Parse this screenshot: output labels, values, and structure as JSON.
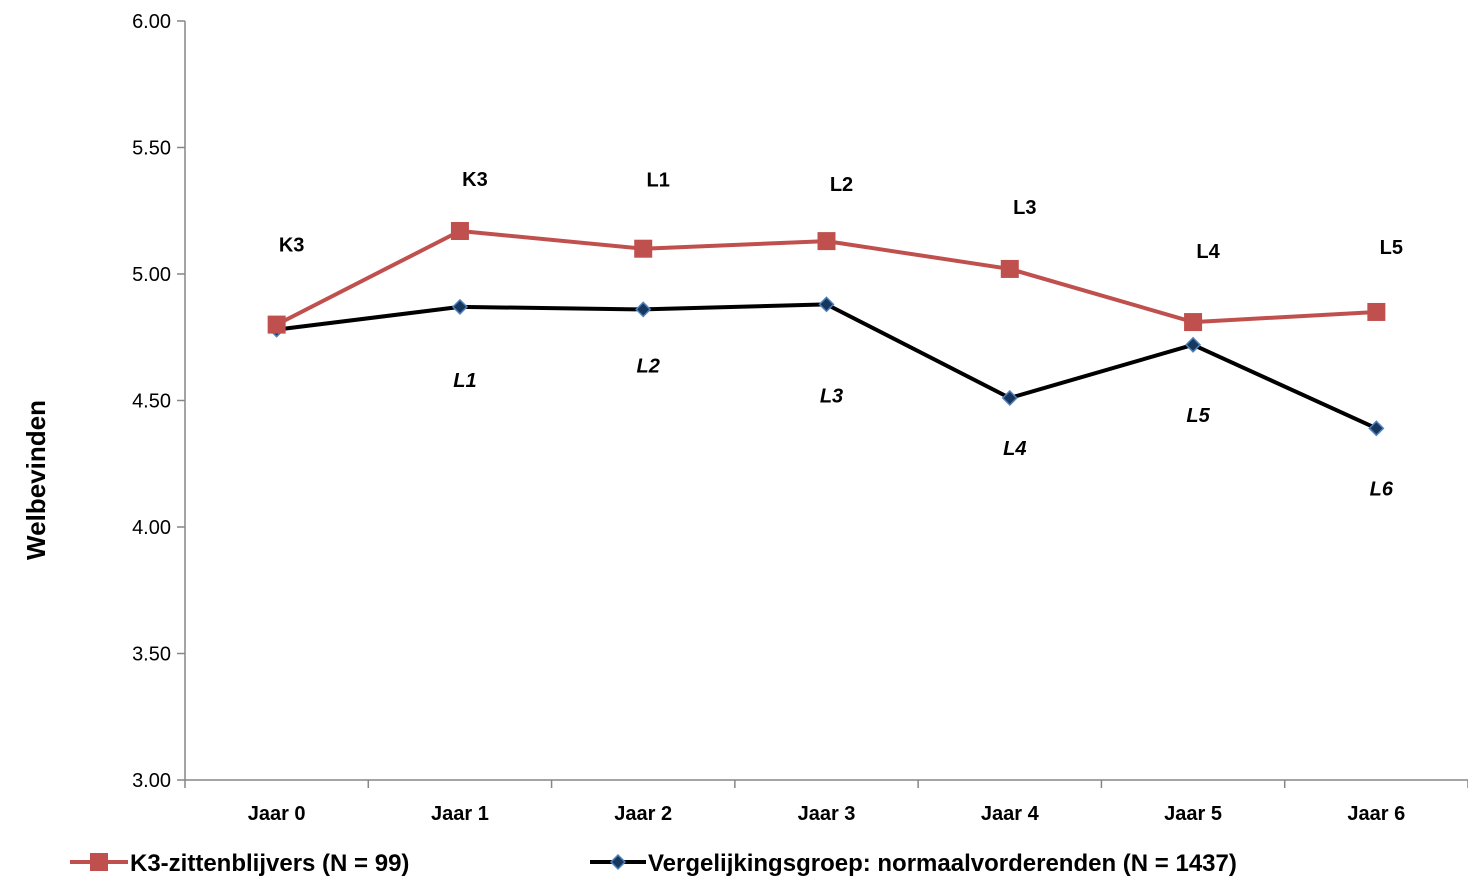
{
  "chart_data": {
    "type": "line",
    "title": "",
    "xlabel": "",
    "ylabel": "Welbevinden",
    "ylim": [
      3.0,
      6.0
    ],
    "yticks": [
      "3.00",
      "3.50",
      "4.00",
      "4.50",
      "5.00",
      "5.50",
      "6.00"
    ],
    "categories": [
      "Jaar 0",
      "Jaar 1",
      "Jaar 2",
      "Jaar 3",
      "Jaar 4",
      "Jaar 5",
      "Jaar 6"
    ],
    "grid": false,
    "legend_position": "bottom",
    "series": [
      {
        "name": "K3-zittenblijvers (N = 99)",
        "color": "#C0504D",
        "marker": "square",
        "values": [
          4.8,
          5.17,
          5.1,
          5.13,
          5.02,
          4.81,
          4.85
        ],
        "annotations": [
          "K3",
          "K3",
          "L1",
          "L2",
          "L3",
          "L4",
          "L5"
        ]
      },
      {
        "name": "Vergelijkingsgroep: normaalvorderenden (N = 1437)",
        "color": "#000000",
        "marker_color": "#17375E",
        "marker": "diamond",
        "values": [
          4.78,
          4.87,
          4.86,
          4.88,
          4.51,
          4.72,
          4.39
        ],
        "annotations": [
          "",
          "L1",
          "L2",
          "L3",
          "L4",
          "L5",
          "L6"
        ]
      }
    ]
  }
}
